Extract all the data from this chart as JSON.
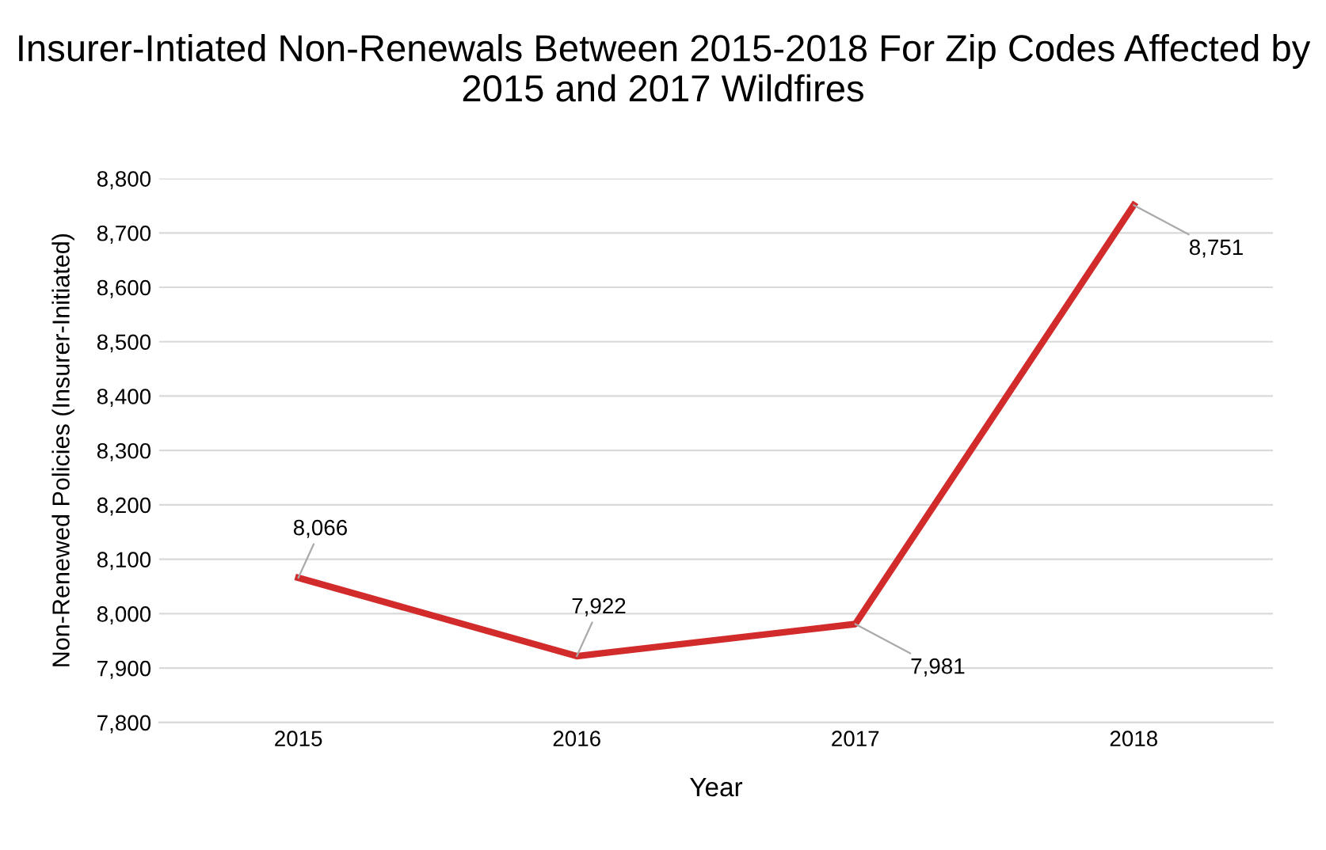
{
  "chart_data": {
    "type": "line",
    "title": "Insurer-Intiated Non-Renewals Between 2015-2018 For Zip Codes Affected by 2015 and 2017 Wildfires",
    "xlabel": "Year",
    "ylabel": "Non-Renewed Policies (Insurer-Initiated)",
    "categories": [
      "2015",
      "2016",
      "2017",
      "2018"
    ],
    "series": [
      {
        "color": "#d22b2b",
        "values": [
          8066,
          7922,
          7981,
          8751
        ],
        "value_labels": [
          "8,066",
          "7,922",
          "7,981",
          "8,751"
        ]
      }
    ],
    "ylim": [
      7800,
      8800
    ],
    "yticks": [
      {
        "value": 7800,
        "label": "7,800"
      },
      {
        "value": 7900,
        "label": "7,900"
      },
      {
        "value": 8000,
        "label": "8,000"
      },
      {
        "value": 8100,
        "label": "8,100"
      },
      {
        "value": 8200,
        "label": "8,200"
      },
      {
        "value": 8300,
        "label": "8,300"
      },
      {
        "value": 8400,
        "label": "8,400"
      },
      {
        "value": 8500,
        "label": "8,500"
      },
      {
        "value": 8600,
        "label": "8,600"
      },
      {
        "value": 8700,
        "label": "8,700"
      },
      {
        "value": 8800,
        "label": "8,800"
      }
    ],
    "grid": "y",
    "marker": "none",
    "line_style": "solid",
    "legend": false
  }
}
